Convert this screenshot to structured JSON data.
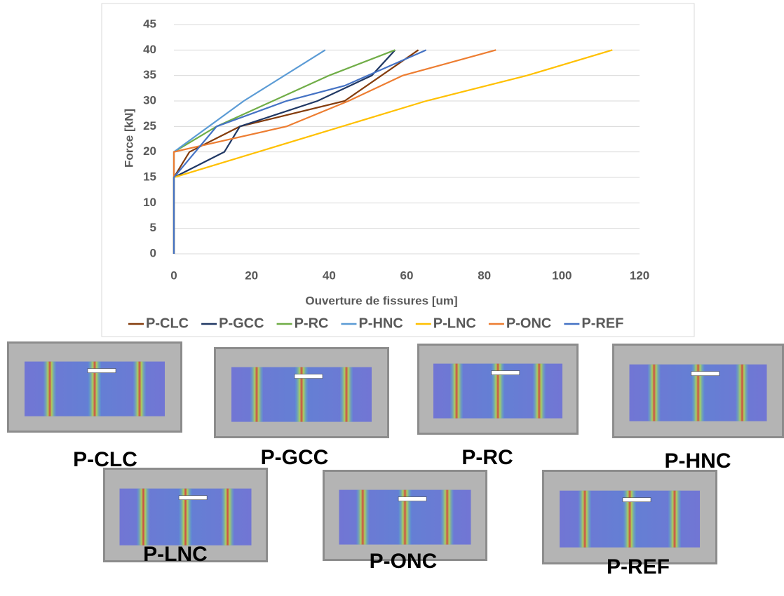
{
  "chart_data": {
    "type": "line",
    "xlabel": "Ouverture de fissures [um]",
    "ylabel": "Force [kN]",
    "xlim": [
      0,
      120
    ],
    "xticks": [
      0,
      20,
      40,
      60,
      80,
      100,
      120
    ],
    "ylim": [
      0,
      45
    ],
    "yticks": [
      0,
      5,
      10,
      15,
      20,
      25,
      30,
      35,
      40,
      45
    ],
    "grid": true,
    "legend": "bottom",
    "series": [
      {
        "name": "P-CLC",
        "color": "#843c0c",
        "x": [
          0,
          0,
          4,
          17,
          44,
          63
        ],
        "values": [
          0,
          15,
          20,
          25,
          30,
          40
        ]
      },
      {
        "name": "P-GCC",
        "color": "#203864",
        "x": [
          0,
          0,
          13,
          17,
          37,
          51,
          57
        ],
        "values": [
          0,
          15,
          20,
          25,
          30,
          35,
          40
        ]
      },
      {
        "name": "P-RC",
        "color": "#70ad47",
        "x": [
          0,
          0,
          0,
          11,
          40,
          57
        ],
        "values": [
          0,
          15,
          20,
          25,
          35,
          40
        ]
      },
      {
        "name": "P-HNC",
        "color": "#5b9bd5",
        "x": [
          0,
          0,
          0,
          18,
          39
        ],
        "values": [
          0,
          15,
          20,
          30,
          40
        ]
      },
      {
        "name": "P-LNC",
        "color": "#ffc000",
        "x": [
          0,
          0,
          65,
          91,
          113
        ],
        "values": [
          0,
          15,
          30,
          35,
          40
        ]
      },
      {
        "name": "P-ONC",
        "color": "#ed7d31",
        "x": [
          0,
          0,
          0,
          29,
          45,
          59,
          83
        ],
        "values": [
          0,
          15,
          20,
          25,
          30,
          35,
          40
        ]
      },
      {
        "name": "P-REF",
        "color": "#4472c4",
        "x": [
          0,
          0,
          11,
          29,
          44,
          65
        ],
        "values": [
          0,
          15,
          25,
          30,
          33,
          40
        ]
      }
    ]
  },
  "photos": {
    "labels": [
      "P-CLC",
      "P-GCC",
      "P-RC",
      "P-HNC",
      "P-LNC",
      "P-ONC",
      "P-REF"
    ]
  }
}
